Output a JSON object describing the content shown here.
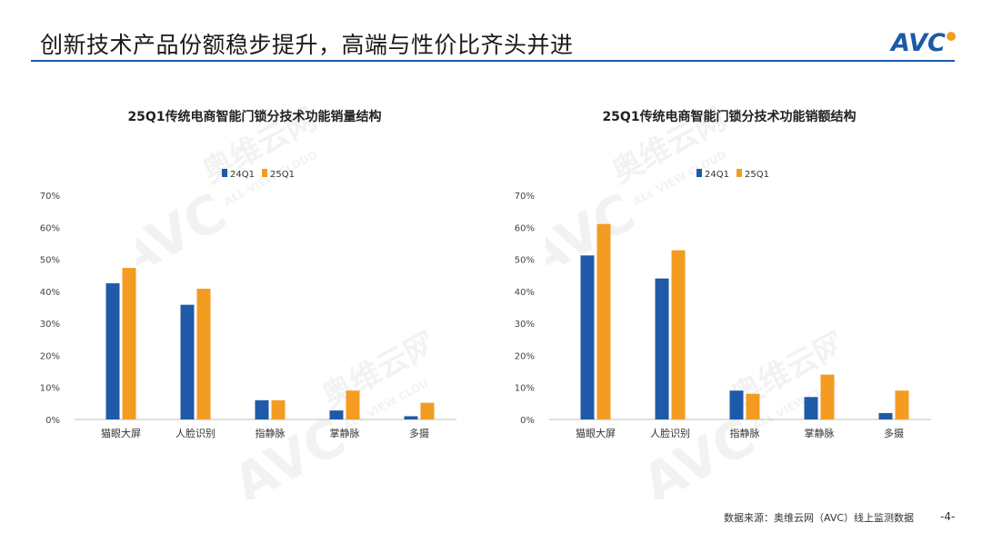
{
  "header": {
    "title": "创新技术产品份额稳步提升，高端与性价比齐头并进",
    "logo_text": "AVC"
  },
  "watermark": {
    "brand": "AVC",
    "cn": "奥维云网",
    "en": "ALL VIEW CLOUD"
  },
  "footer": {
    "source": "数据来源：奥维云网（AVC）线上监测数据",
    "page": "-4-"
  },
  "colors": {
    "series_24": "#1f5aa8",
    "series_25": "#f39c21",
    "accent": "#1c5aa6"
  },
  "chart_data": [
    {
      "type": "bar",
      "title": "25Q1传统电商智能门锁分技术功能销量结构",
      "categories": [
        "猫眼大屏",
        "人脸识别",
        "指静脉",
        "掌静脉",
        "多摄"
      ],
      "series": [
        {
          "name": "24Q1",
          "values": [
            42.5,
            35.8,
            6.0,
            2.8,
            1.0
          ]
        },
        {
          "name": "25Q1",
          "values": [
            47.3,
            40.8,
            6.0,
            9.0,
            5.2
          ]
        }
      ],
      "ylim": [
        0,
        70
      ],
      "yticks": [
        "0%",
        "10%",
        "20%",
        "30%",
        "40%",
        "50%",
        "60%",
        "70%"
      ],
      "legend": "top-center",
      "grid": false
    },
    {
      "type": "bar",
      "title": "25Q1传统电商智能门锁分技术功能销额结构",
      "categories": [
        "猫眼大屏",
        "人脸识别",
        "指静脉",
        "掌静脉",
        "多摄"
      ],
      "series": [
        {
          "name": "24Q1",
          "values": [
            51.2,
            44.0,
            9.0,
            7.0,
            2.0
          ]
        },
        {
          "name": "25Q1",
          "values": [
            61.0,
            52.8,
            8.0,
            14.0,
            9.0
          ]
        }
      ],
      "ylim": [
        0,
        70
      ],
      "yticks": [
        "0%",
        "10%",
        "20%",
        "30%",
        "40%",
        "50%",
        "60%",
        "70%"
      ],
      "legend": "top-center",
      "grid": false
    }
  ]
}
